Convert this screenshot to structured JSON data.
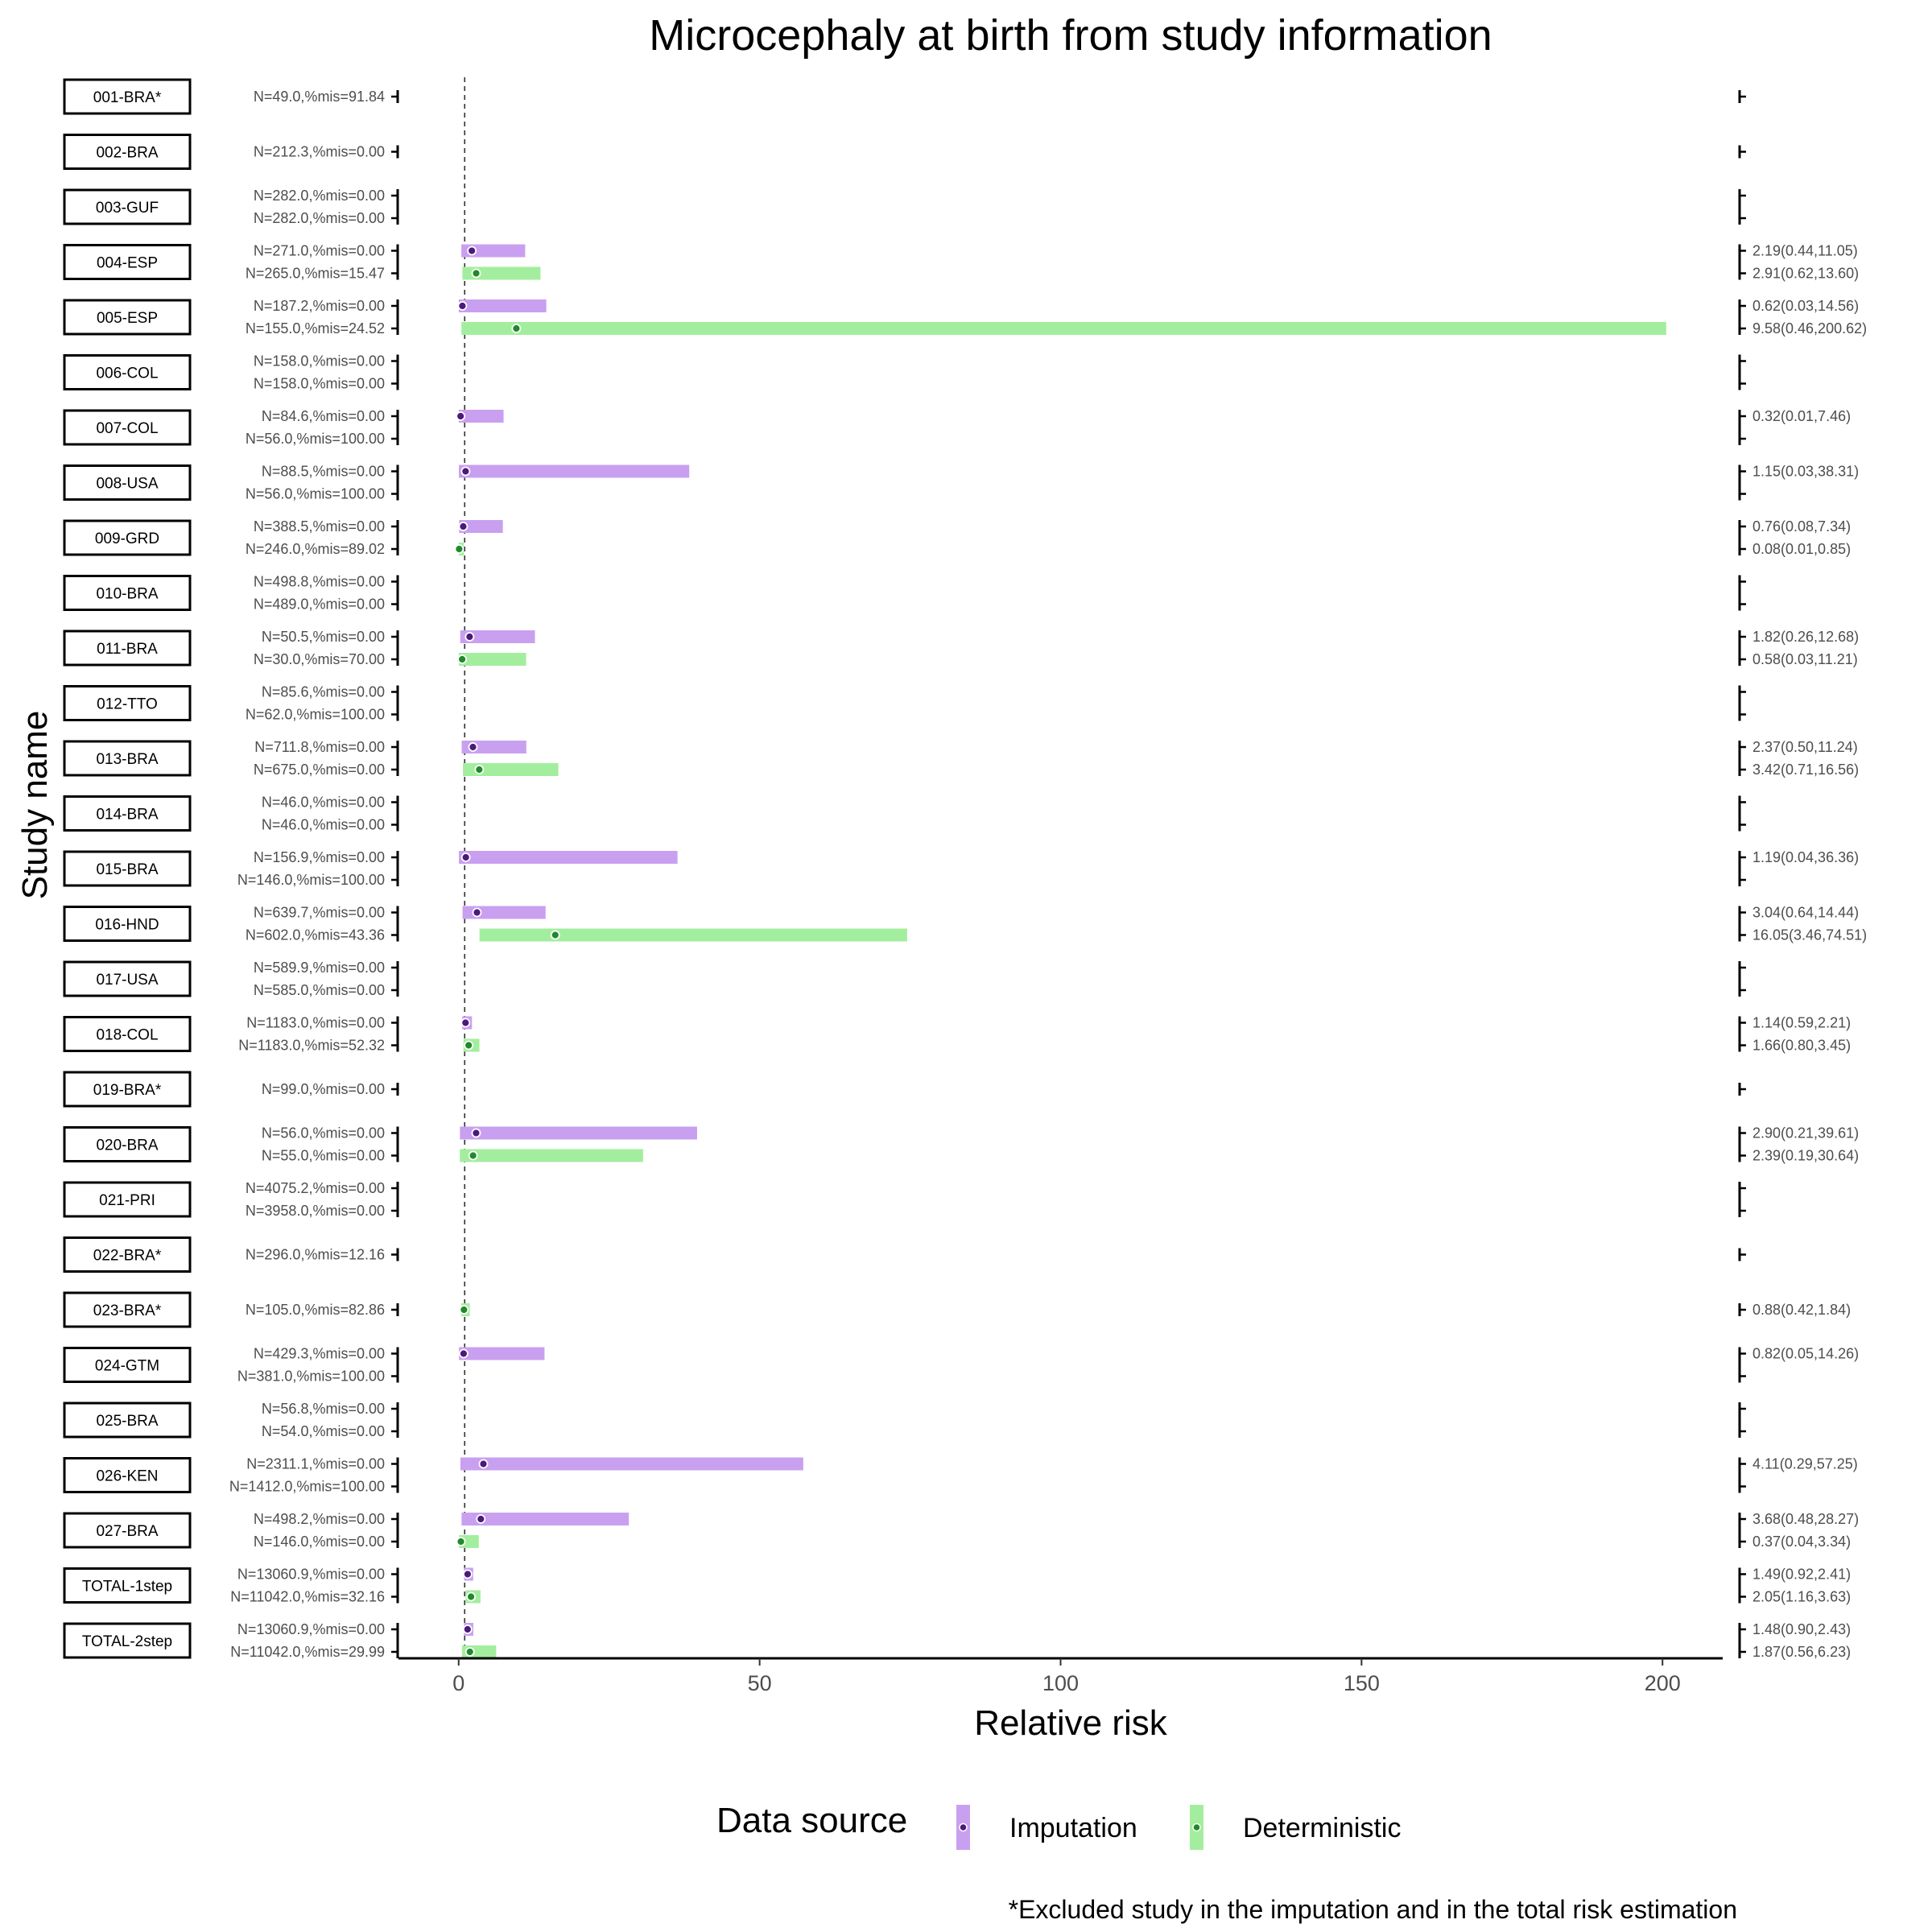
{
  "chart_data": {
    "type": "bar",
    "title": "Microcephaly at birth from study information",
    "xlabel": "Relative risk",
    "ylabel": "Study name",
    "xlim": [
      -10,
      210
    ],
    "xticks": [
      "0",
      "50",
      "100",
      "150",
      "200"
    ],
    "xtick_values": [
      0,
      50,
      100,
      150,
      200
    ],
    "reference_line": 1,
    "legend": {
      "title": "Data source",
      "position": "bottom",
      "items": [
        {
          "name": "Imputation",
          "color": "#c9a0f0",
          "dot": "#4b1a7a"
        },
        {
          "name": "Deterministic",
          "color": "#a3ee9e",
          "dot": "#1f8a2a"
        }
      ]
    },
    "footnote": "*Excluded study in the imputation and in the total risk estimation",
    "studies": [
      {
        "name": "001-BRA*",
        "rows": [
          {
            "source": "Deterministic",
            "n_label": "N=49.0,%mis=91.84",
            "est": null,
            "lo": null,
            "hi": null,
            "rr_label": ""
          }
        ]
      },
      {
        "name": "002-BRA",
        "rows": [
          {
            "source": "Imputation",
            "n_label": "N=212.3,%mis=0.00",
            "est": null,
            "lo": null,
            "hi": null,
            "rr_label": ""
          }
        ]
      },
      {
        "name": "003-GUF",
        "rows": [
          {
            "source": "Imputation",
            "n_label": "N=282.0,%mis=0.00",
            "est": null,
            "lo": null,
            "hi": null,
            "rr_label": ""
          },
          {
            "source": "Deterministic",
            "n_label": "N=282.0,%mis=0.00",
            "est": null,
            "lo": null,
            "hi": null,
            "rr_label": ""
          }
        ]
      },
      {
        "name": "004-ESP",
        "rows": [
          {
            "source": "Imputation",
            "n_label": "N=271.0,%mis=0.00",
            "est": 2.19,
            "lo": 0.44,
            "hi": 11.05,
            "rr_label": "2.19(0.44,11.05)"
          },
          {
            "source": "Deterministic",
            "n_label": "N=265.0,%mis=15.47",
            "est": 2.91,
            "lo": 0.62,
            "hi": 13.6,
            "rr_label": "2.91(0.62,13.60)"
          }
        ]
      },
      {
        "name": "005-ESP",
        "rows": [
          {
            "source": "Imputation",
            "n_label": "N=187.2,%mis=0.00",
            "est": 0.62,
            "lo": 0.03,
            "hi": 14.56,
            "rr_label": "0.62(0.03,14.56)"
          },
          {
            "source": "Deterministic",
            "n_label": "N=155.0,%mis=24.52",
            "est": 9.58,
            "lo": 0.46,
            "hi": 200.62,
            "rr_label": "9.58(0.46,200.62)"
          }
        ]
      },
      {
        "name": "006-COL",
        "rows": [
          {
            "source": "Imputation",
            "n_label": "N=158.0,%mis=0.00",
            "est": null,
            "lo": null,
            "hi": null,
            "rr_label": ""
          },
          {
            "source": "Deterministic",
            "n_label": "N=158.0,%mis=0.00",
            "est": null,
            "lo": null,
            "hi": null,
            "rr_label": ""
          }
        ]
      },
      {
        "name": "007-COL",
        "rows": [
          {
            "source": "Imputation",
            "n_label": "N=84.6,%mis=0.00",
            "est": 0.32,
            "lo": 0.01,
            "hi": 7.46,
            "rr_label": "0.32(0.01,7.46)"
          },
          {
            "source": "Deterministic",
            "n_label": "N=56.0,%mis=100.00",
            "est": null,
            "lo": null,
            "hi": null,
            "rr_label": ""
          }
        ]
      },
      {
        "name": "008-USA",
        "rows": [
          {
            "source": "Imputation",
            "n_label": "N=88.5,%mis=0.00",
            "est": 1.15,
            "lo": 0.03,
            "hi": 38.31,
            "rr_label": "1.15(0.03,38.31)"
          },
          {
            "source": "Deterministic",
            "n_label": "N=56.0,%mis=100.00",
            "est": null,
            "lo": null,
            "hi": null,
            "rr_label": ""
          }
        ]
      },
      {
        "name": "009-GRD",
        "rows": [
          {
            "source": "Imputation",
            "n_label": "N=388.5,%mis=0.00",
            "est": 0.76,
            "lo": 0.08,
            "hi": 7.34,
            "rr_label": "0.76(0.08,7.34)"
          },
          {
            "source": "Deterministic",
            "n_label": "N=246.0,%mis=89.02",
            "est": 0.08,
            "lo": 0.01,
            "hi": 0.85,
            "rr_label": "0.08(0.01,0.85)"
          }
        ]
      },
      {
        "name": "010-BRA",
        "rows": [
          {
            "source": "Imputation",
            "n_label": "N=498.8,%mis=0.00",
            "est": null,
            "lo": null,
            "hi": null,
            "rr_label": ""
          },
          {
            "source": "Deterministic",
            "n_label": "N=489.0,%mis=0.00",
            "est": null,
            "lo": null,
            "hi": null,
            "rr_label": ""
          }
        ]
      },
      {
        "name": "011-BRA",
        "rows": [
          {
            "source": "Imputation",
            "n_label": "N=50.5,%mis=0.00",
            "est": 1.82,
            "lo": 0.26,
            "hi": 12.68,
            "rr_label": "1.82(0.26,12.68)"
          },
          {
            "source": "Deterministic",
            "n_label": "N=30.0,%mis=70.00",
            "est": 0.58,
            "lo": 0.03,
            "hi": 11.21,
            "rr_label": "0.58(0.03,11.21)"
          }
        ]
      },
      {
        "name": "012-TTO",
        "rows": [
          {
            "source": "Imputation",
            "n_label": "N=85.6,%mis=0.00",
            "est": null,
            "lo": null,
            "hi": null,
            "rr_label": ""
          },
          {
            "source": "Deterministic",
            "n_label": "N=62.0,%mis=100.00",
            "est": null,
            "lo": null,
            "hi": null,
            "rr_label": ""
          }
        ]
      },
      {
        "name": "013-BRA",
        "rows": [
          {
            "source": "Imputation",
            "n_label": "N=711.8,%mis=0.00",
            "est": 2.37,
            "lo": 0.5,
            "hi": 11.24,
            "rr_label": "2.37(0.50,11.24)"
          },
          {
            "source": "Deterministic",
            "n_label": "N=675.0,%mis=0.00",
            "est": 3.42,
            "lo": 0.71,
            "hi": 16.56,
            "rr_label": "3.42(0.71,16.56)"
          }
        ]
      },
      {
        "name": "014-BRA",
        "rows": [
          {
            "source": "Imputation",
            "n_label": "N=46.0,%mis=0.00",
            "est": null,
            "lo": null,
            "hi": null,
            "rr_label": ""
          },
          {
            "source": "Deterministic",
            "n_label": "N=46.0,%mis=0.00",
            "est": null,
            "lo": null,
            "hi": null,
            "rr_label": ""
          }
        ]
      },
      {
        "name": "015-BRA",
        "rows": [
          {
            "source": "Imputation",
            "n_label": "N=156.9,%mis=0.00",
            "est": 1.19,
            "lo": 0.04,
            "hi": 36.36,
            "rr_label": "1.19(0.04,36.36)"
          },
          {
            "source": "Deterministic",
            "n_label": "N=146.0,%mis=100.00",
            "est": null,
            "lo": null,
            "hi": null,
            "rr_label": ""
          }
        ]
      },
      {
        "name": "016-HND",
        "rows": [
          {
            "source": "Imputation",
            "n_label": "N=639.7,%mis=0.00",
            "est": 3.04,
            "lo": 0.64,
            "hi": 14.44,
            "rr_label": "3.04(0.64,14.44)"
          },
          {
            "source": "Deterministic",
            "n_label": "N=602.0,%mis=43.36",
            "est": 16.05,
            "lo": 3.46,
            "hi": 74.51,
            "rr_label": "16.05(3.46,74.51)"
          }
        ]
      },
      {
        "name": "017-USA",
        "rows": [
          {
            "source": "Imputation",
            "n_label": "N=589.9,%mis=0.00",
            "est": null,
            "lo": null,
            "hi": null,
            "rr_label": ""
          },
          {
            "source": "Deterministic",
            "n_label": "N=585.0,%mis=0.00",
            "est": null,
            "lo": null,
            "hi": null,
            "rr_label": ""
          }
        ]
      },
      {
        "name": "018-COL",
        "rows": [
          {
            "source": "Imputation",
            "n_label": "N=1183.0,%mis=0.00",
            "est": 1.14,
            "lo": 0.59,
            "hi": 2.21,
            "rr_label": "1.14(0.59,2.21)"
          },
          {
            "source": "Deterministic",
            "n_label": "N=1183.0,%mis=52.32",
            "est": 1.66,
            "lo": 0.8,
            "hi": 3.45,
            "rr_label": "1.66(0.80,3.45)"
          }
        ]
      },
      {
        "name": "019-BRA*",
        "rows": [
          {
            "source": "Deterministic",
            "n_label": "N=99.0,%mis=0.00",
            "est": null,
            "lo": null,
            "hi": null,
            "rr_label": ""
          }
        ]
      },
      {
        "name": "020-BRA",
        "rows": [
          {
            "source": "Imputation",
            "n_label": "N=56.0,%mis=0.00",
            "est": 2.9,
            "lo": 0.21,
            "hi": 39.61,
            "rr_label": "2.90(0.21,39.61)"
          },
          {
            "source": "Deterministic",
            "n_label": "N=55.0,%mis=0.00",
            "est": 2.39,
            "lo": 0.19,
            "hi": 30.64,
            "rr_label": "2.39(0.19,30.64)"
          }
        ]
      },
      {
        "name": "021-PRI",
        "rows": [
          {
            "source": "Imputation",
            "n_label": "N=4075.2,%mis=0.00",
            "est": null,
            "lo": null,
            "hi": null,
            "rr_label": ""
          },
          {
            "source": "Deterministic",
            "n_label": "N=3958.0,%mis=0.00",
            "est": null,
            "lo": null,
            "hi": null,
            "rr_label": ""
          }
        ]
      },
      {
        "name": "022-BRA*",
        "rows": [
          {
            "source": "Deterministic",
            "n_label": "N=296.0,%mis=12.16",
            "est": null,
            "lo": null,
            "hi": null,
            "rr_label": ""
          }
        ]
      },
      {
        "name": "023-BRA*",
        "rows": [
          {
            "source": "Deterministic",
            "n_label": "N=105.0,%mis=82.86",
            "est": 0.88,
            "lo": 0.42,
            "hi": 1.84,
            "rr_label": "0.88(0.42,1.84)"
          }
        ]
      },
      {
        "name": "024-GTM",
        "rows": [
          {
            "source": "Imputation",
            "n_label": "N=429.3,%mis=0.00",
            "est": 0.82,
            "lo": 0.05,
            "hi": 14.26,
            "rr_label": "0.82(0.05,14.26)"
          },
          {
            "source": "Deterministic",
            "n_label": "N=381.0,%mis=100.00",
            "est": null,
            "lo": null,
            "hi": null,
            "rr_label": ""
          }
        ]
      },
      {
        "name": "025-BRA",
        "rows": [
          {
            "source": "Imputation",
            "n_label": "N=56.8,%mis=0.00",
            "est": null,
            "lo": null,
            "hi": null,
            "rr_label": ""
          },
          {
            "source": "Deterministic",
            "n_label": "N=54.0,%mis=0.00",
            "est": null,
            "lo": null,
            "hi": null,
            "rr_label": ""
          }
        ]
      },
      {
        "name": "026-KEN",
        "rows": [
          {
            "source": "Imputation",
            "n_label": "N=2311.1,%mis=0.00",
            "est": 4.11,
            "lo": 0.29,
            "hi": 57.25,
            "rr_label": "4.11(0.29,57.25)"
          },
          {
            "source": "Deterministic",
            "n_label": "N=1412.0,%mis=100.00",
            "est": null,
            "lo": null,
            "hi": null,
            "rr_label": ""
          }
        ]
      },
      {
        "name": "027-BRA",
        "rows": [
          {
            "source": "Imputation",
            "n_label": "N=498.2,%mis=0.00",
            "est": 3.68,
            "lo": 0.48,
            "hi": 28.27,
            "rr_label": "3.68(0.48,28.27)"
          },
          {
            "source": "Deterministic",
            "n_label": "N=146.0,%mis=0.00",
            "est": 0.37,
            "lo": 0.04,
            "hi": 3.34,
            "rr_label": "0.37(0.04,3.34)"
          }
        ]
      },
      {
        "name": "TOTAL-1step",
        "rows": [
          {
            "source": "Imputation",
            "n_label": "N=13060.9,%mis=0.00",
            "est": 1.49,
            "lo": 0.92,
            "hi": 2.41,
            "rr_label": "1.49(0.92,2.41)"
          },
          {
            "source": "Deterministic",
            "n_label": "N=11042.0,%mis=32.16",
            "est": 2.05,
            "lo": 1.16,
            "hi": 3.63,
            "rr_label": "2.05(1.16,3.63)"
          }
        ]
      },
      {
        "name": "TOTAL-2step",
        "rows": [
          {
            "source": "Imputation",
            "n_label": "N=13060.9,%mis=0.00",
            "est": 1.48,
            "lo": 0.9,
            "hi": 2.43,
            "rr_label": "1.48(0.90,2.43)"
          },
          {
            "source": "Deterministic",
            "n_label": "N=11042.0,%mis=29.99",
            "est": 1.87,
            "lo": 0.56,
            "hi": 6.23,
            "rr_label": "1.87(0.56,6.23)"
          }
        ]
      }
    ]
  }
}
